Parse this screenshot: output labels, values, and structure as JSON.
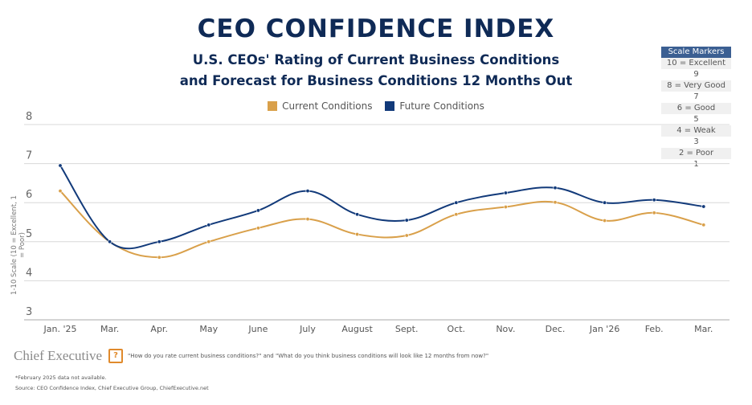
{
  "header": {
    "title": "CEO CONFIDENCE INDEX",
    "subtitle_line1": "U.S. CEOs' Rating of Current Business Conditions",
    "subtitle_line2": "and Forecast for Business Conditions 12 Months Out"
  },
  "scale_markers": {
    "title": "Scale Markers",
    "rows": [
      "10 = Excellent",
      "9",
      "8 = Very Good",
      "7",
      "6 = Good",
      "5",
      "4 = Weak",
      "3",
      "2 = Poor",
      "1"
    ]
  },
  "footer": {
    "logo": "Chief Executive",
    "question": "\"How do you rate current business conditions?\" and \"What do you think business conditions will look like 12 months from now?\"",
    "note": "*February 2025 data not available.",
    "source": "Source: CEO Confidence Index, Chief Executive Group, ChiefExecutive.net"
  },
  "chart_data": {
    "type": "line",
    "title": "CEO CONFIDENCE INDEX",
    "ylabel": "1-10 Scale (10 = Excellent, 1 = Poor)",
    "xlabel": "",
    "ylim": [
      3,
      8
    ],
    "yticks": [
      "3",
      "4",
      "5",
      "6",
      "7",
      "8"
    ],
    "grid": true,
    "legend_placement": "top",
    "categories": [
      "Jan. '25",
      "Mar.",
      "Apr.",
      "May",
      "June",
      "July",
      "August",
      "Sept.",
      "Oct.",
      "Nov.",
      "Dec.",
      "Jan '26",
      "Feb.",
      "Mar."
    ],
    "series": [
      {
        "name": "Current Conditions",
        "color": "#d9a04a",
        "values": [
          6.3,
          5.0,
          4.6,
          5.0,
          5.35,
          5.58,
          5.19,
          5.16,
          5.7,
          5.89,
          6.01,
          5.54,
          5.74,
          5.43
        ]
      },
      {
        "name": "Future Conditions",
        "color": "#123a7a",
        "values": [
          6.95,
          5.0,
          5.0,
          5.43,
          5.8,
          6.3,
          5.7,
          5.55,
          6.0,
          6.25,
          6.38,
          6.0,
          6.07,
          5.9
        ]
      }
    ]
  }
}
